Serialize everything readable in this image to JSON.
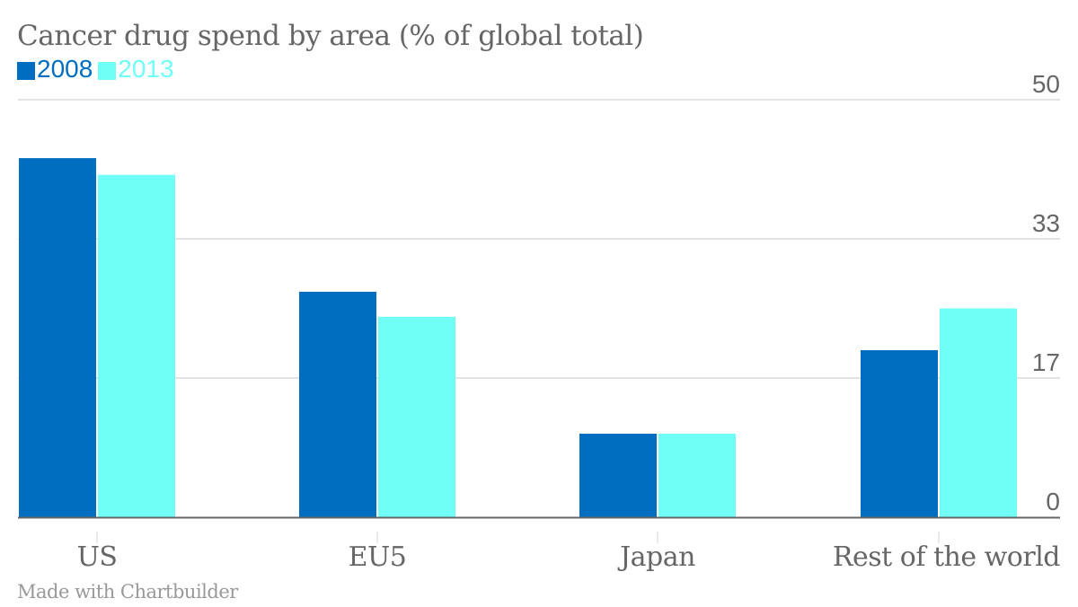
{
  "chart_data": {
    "type": "bar",
    "title": "Cancer drug spend by area (% of global total)",
    "categories": [
      "US",
      "EU5",
      "Japan",
      "Rest of the world"
    ],
    "series": [
      {
        "name": "2008",
        "color": "#006ec0",
        "values": [
          43,
          27,
          10,
          20
        ]
      },
      {
        "name": "2013",
        "color": "#6ffff7",
        "values": [
          41,
          24,
          10,
          25
        ]
      }
    ],
    "ylim": [
      0,
      50
    ],
    "yticks": [
      {
        "value": 0,
        "label": "0"
      },
      {
        "value": 16.667,
        "label": "17"
      },
      {
        "value": 33.333,
        "label": "33"
      },
      {
        "value": 50,
        "label": "50"
      }
    ],
    "xlabel": "",
    "ylabel": "",
    "grid": true,
    "legend_position": "top-left",
    "axis_side": "right"
  },
  "footer": "Made with Chartbuilder"
}
